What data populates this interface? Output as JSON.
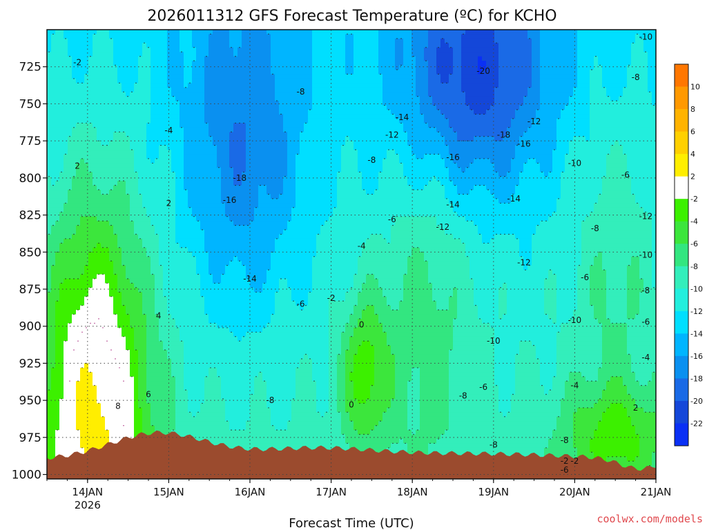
{
  "chart_data": {
    "type": "heatmap",
    "title": "2026011312 GFS Forecast Temperature (ºC) for KCHO",
    "xlabel": "Forecast Time (UTC)",
    "x_ticks": [
      {
        "label": "14JAN",
        "sub": "2026"
      },
      {
        "label": "15JAN",
        "sub": ""
      },
      {
        "label": "16JAN",
        "sub": ""
      },
      {
        "label": "17JAN",
        "sub": ""
      },
      {
        "label": "18JAN",
        "sub": ""
      },
      {
        "label": "19JAN",
        "sub": ""
      },
      {
        "label": "20JAN",
        "sub": ""
      },
      {
        "label": "21JAN",
        "sub": ""
      }
    ],
    "xlim": [
      "2026-01-13T12",
      "2026-01-21T00"
    ],
    "y_ticks": [
      "725",
      "750",
      "775",
      "800",
      "825",
      "850",
      "875",
      "900",
      "925",
      "950",
      "975",
      "1000"
    ],
    "ylim": [
      1003,
      700
    ],
    "grid": true,
    "colorbar": {
      "labels": [
        "10",
        "8",
        "6",
        "4",
        "2",
        "-2",
        "-4",
        "-6",
        "-8",
        "-10",
        "-12",
        "-14",
        "-16",
        "-18",
        "-20",
        "-22"
      ],
      "colors": [
        "#ff7700",
        "#ff9900",
        "#ffb300",
        "#ffd000",
        "#ffee00",
        "#ffffff",
        "#3cf000",
        "#3ce63c",
        "#33e680",
        "#33eebb",
        "#22eedd",
        "#00dfff",
        "#00b5ff",
        "#0a90f0",
        "#1a6ae6",
        "#1447d9",
        "#0a30f5"
      ]
    },
    "contour_labels": [
      {
        "time": "2026-01-13T21",
        "p": 722,
        "text": "-2"
      },
      {
        "time": "2026-01-13T21",
        "p": 792,
        "text": "2"
      },
      {
        "time": "2026-01-15T00",
        "p": 817,
        "text": "2"
      },
      {
        "time": "2026-01-15T00",
        "p": 768,
        "text": "-4"
      },
      {
        "time": "2026-01-14T21",
        "p": 893,
        "text": "4"
      },
      {
        "time": "2026-01-14T18",
        "p": 946,
        "text": "6"
      },
      {
        "time": "2026-01-14T09",
        "p": 954,
        "text": "8"
      },
      {
        "time": "2026-01-15T21",
        "p": 800,
        "text": "-18"
      },
      {
        "time": "2026-01-15T18",
        "p": 815,
        "text": "-16"
      },
      {
        "time": "2026-01-16T00",
        "p": 868,
        "text": "-14"
      },
      {
        "time": "2026-01-16T06",
        "p": 950,
        "text": "-8"
      },
      {
        "time": "2026-01-16T15",
        "p": 742,
        "text": "-8"
      },
      {
        "time": "2026-01-16T15",
        "p": 885,
        "text": "-6"
      },
      {
        "time": "2026-01-17T00",
        "p": 881,
        "text": "-2"
      },
      {
        "time": "2026-01-17T12",
        "p": 788,
        "text": "-8"
      },
      {
        "time": "2026-01-17T18",
        "p": 828,
        "text": "-6"
      },
      {
        "time": "2026-01-17T09",
        "p": 846,
        "text": "-4"
      },
      {
        "time": "2026-01-17T18",
        "p": 771,
        "text": "-12"
      },
      {
        "time": "2026-01-17T21",
        "p": 759,
        "text": "-14"
      },
      {
        "time": "2026-01-17T09",
        "p": 899,
        "text": "0"
      },
      {
        "time": "2026-01-17T06",
        "p": 953,
        "text": "0"
      },
      {
        "time": "2026-01-18T21",
        "p": 728,
        "text": "-20"
      },
      {
        "time": "2026-01-18T12",
        "p": 786,
        "text": "-16"
      },
      {
        "time": "2026-01-19T03",
        "p": 771,
        "text": "-18"
      },
      {
        "time": "2026-01-19T09",
        "p": 777,
        "text": "-16"
      },
      {
        "time": "2026-01-19T12",
        "p": 762,
        "text": "-12"
      },
      {
        "time": "2026-01-18T12",
        "p": 818,
        "text": "-14"
      },
      {
        "time": "2026-01-19T06",
        "p": 814,
        "text": "-14"
      },
      {
        "time": "2026-01-18T09",
        "p": 833,
        "text": "-12"
      },
      {
        "time": "2026-01-19T09",
        "p": 857,
        "text": "-12"
      },
      {
        "time": "2026-01-20T00",
        "p": 790,
        "text": "-10"
      },
      {
        "time": "2026-01-20T06",
        "p": 834,
        "text": "-8"
      },
      {
        "time": "2026-01-19T00",
        "p": 910,
        "text": "-10"
      },
      {
        "time": "2026-01-18T21",
        "p": 941,
        "text": "-6"
      },
      {
        "time": "2026-01-18T15",
        "p": 947,
        "text": "-8"
      },
      {
        "time": "2026-01-19T00",
        "p": 980,
        "text": "-8"
      },
      {
        "time": "2026-01-20T03",
        "p": 867,
        "text": "-6"
      },
      {
        "time": "2026-01-20T00",
        "p": 896,
        "text": "-10"
      },
      {
        "time": "2026-01-20T00",
        "p": 940,
        "text": "-4"
      },
      {
        "time": "2026-01-19T21",
        "p": 977,
        "text": "-8"
      },
      {
        "time": "2026-01-20T21",
        "p": 705,
        "text": "-10"
      },
      {
        "time": "2026-01-20T18",
        "p": 732,
        "text": "-8"
      },
      {
        "time": "2026-01-20T15",
        "p": 798,
        "text": "-6"
      },
      {
        "time": "2026-01-20T21",
        "p": 826,
        "text": "-12"
      },
      {
        "time": "2026-01-20T21",
        "p": 852,
        "text": "-10"
      },
      {
        "time": "2026-01-20T21",
        "p": 876,
        "text": "-8"
      },
      {
        "time": "2026-01-20T21",
        "p": 897,
        "text": "-6"
      },
      {
        "time": "2026-01-20T21",
        "p": 921,
        "text": "-4"
      },
      {
        "time": "2026-01-20T18",
        "p": 955,
        "text": "2"
      },
      {
        "time": "2026-01-19T21",
        "p": 997,
        "text": "-6"
      },
      {
        "time": "2026-01-19T21",
        "p": 991,
        "text": "-2"
      },
      {
        "time": "2026-01-20T00",
        "p": 991,
        "text": "-2"
      }
    ]
  },
  "source_label": "coolwx.com/models"
}
